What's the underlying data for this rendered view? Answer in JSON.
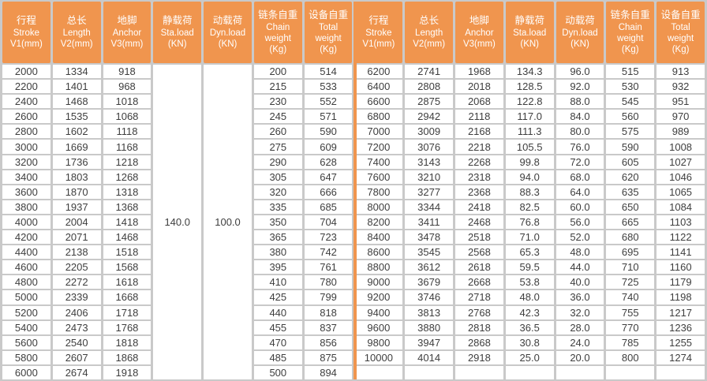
{
  "colors": {
    "header_orange": "#f0954e",
    "grid_gray": "#c9c9c9",
    "cell_white": "#ffffff",
    "text_dark": "#3e3e3e",
    "header_text": "#ffffff"
  },
  "table": {
    "columns": [
      {
        "lines": [
          "行程",
          "Stroke",
          "V1(mm)"
        ]
      },
      {
        "lines": [
          "总长",
          "Length",
          "V2(mm)"
        ]
      },
      {
        "lines": [
          "地脚",
          "Anchor",
          "V3(mm)"
        ]
      },
      {
        "lines": [
          "静载荷",
          "Sta.load",
          "(KN)"
        ]
      },
      {
        "lines": [
          "动载荷",
          "Dyn.load",
          "(KN)"
        ]
      },
      {
        "lines": [
          "链条自重",
          "Chain",
          "weight",
          "(Kg)"
        ]
      },
      {
        "lines": [
          "设备自重",
          "Total",
          "weight",
          "(Kg)"
        ]
      }
    ],
    "left_merged": {
      "sta_load": "140.0",
      "dyn_load": "100.0"
    },
    "left_rows": [
      [
        "2000",
        "1334",
        "918",
        "200",
        "514"
      ],
      [
        "2200",
        "1401",
        "968",
        "215",
        "533"
      ],
      [
        "2400",
        "1468",
        "1018",
        "230",
        "552"
      ],
      [
        "2600",
        "1535",
        "1068",
        "245",
        "571"
      ],
      [
        "2800",
        "1602",
        "1118",
        "260",
        "590"
      ],
      [
        "3000",
        "1669",
        "1168",
        "275",
        "609"
      ],
      [
        "3200",
        "1736",
        "1218",
        "290",
        "628"
      ],
      [
        "3400",
        "1803",
        "1268",
        "305",
        "647"
      ],
      [
        "3600",
        "1870",
        "1318",
        "320",
        "666"
      ],
      [
        "3800",
        "1937",
        "1368",
        "335",
        "685"
      ],
      [
        "4000",
        "2004",
        "1418",
        "350",
        "704"
      ],
      [
        "4200",
        "2071",
        "1468",
        "365",
        "723"
      ],
      [
        "4400",
        "2138",
        "1518",
        "380",
        "742"
      ],
      [
        "4600",
        "2205",
        "1568",
        "395",
        "761"
      ],
      [
        "4800",
        "2272",
        "1618",
        "410",
        "780"
      ],
      [
        "5000",
        "2339",
        "1668",
        "425",
        "799"
      ],
      [
        "5200",
        "2406",
        "1718",
        "440",
        "818"
      ],
      [
        "5400",
        "2473",
        "1768",
        "455",
        "837"
      ],
      [
        "5600",
        "2540",
        "1818",
        "470",
        "856"
      ],
      [
        "5800",
        "2607",
        "1868",
        "485",
        "875"
      ],
      [
        "6000",
        "2674",
        "1918",
        "500",
        "894"
      ]
    ],
    "right_rows": [
      [
        "6200",
        "2741",
        "1968",
        "134.3",
        "96.0",
        "515",
        "913"
      ],
      [
        "6400",
        "2808",
        "2018",
        "128.5",
        "92.0",
        "530",
        "932"
      ],
      [
        "6600",
        "2875",
        "2068",
        "122.8",
        "88.0",
        "545",
        "951"
      ],
      [
        "6800",
        "2942",
        "2118",
        "117.0",
        "84.0",
        "560",
        "970"
      ],
      [
        "7000",
        "3009",
        "2168",
        "111.3",
        "80.0",
        "575",
        "989"
      ],
      [
        "7200",
        "3076",
        "2218",
        "105.5",
        "76.0",
        "590",
        "1008"
      ],
      [
        "7400",
        "3143",
        "2268",
        "99.8",
        "72.0",
        "605",
        "1027"
      ],
      [
        "7600",
        "3210",
        "2318",
        "94.0",
        "68.0",
        "620",
        "1046"
      ],
      [
        "7800",
        "3277",
        "2368",
        "88.3",
        "64.0",
        "635",
        "1065"
      ],
      [
        "8000",
        "3344",
        "2418",
        "82.5",
        "60.0",
        "650",
        "1084"
      ],
      [
        "8200",
        "3411",
        "2468",
        "76.8",
        "56.0",
        "665",
        "1103"
      ],
      [
        "8400",
        "3478",
        "2518",
        "71.0",
        "52.0",
        "680",
        "1122"
      ],
      [
        "8600",
        "3545",
        "2568",
        "65.3",
        "48.0",
        "695",
        "1141"
      ],
      [
        "8800",
        "3612",
        "2618",
        "59.5",
        "44.0",
        "710",
        "1160"
      ],
      [
        "9000",
        "3679",
        "2668",
        "53.8",
        "40.0",
        "725",
        "1179"
      ],
      [
        "9200",
        "3746",
        "2718",
        "48.0",
        "36.0",
        "740",
        "1198"
      ],
      [
        "9400",
        "3813",
        "2768",
        "42.3",
        "32.0",
        "755",
        "1217"
      ],
      [
        "9600",
        "3880",
        "2818",
        "36.5",
        "28.0",
        "770",
        "1236"
      ],
      [
        "9800",
        "3947",
        "2868",
        "30.8",
        "24.0",
        "785",
        "1255"
      ],
      [
        "10000",
        "4014",
        "2918",
        "25.0",
        "20.0",
        "800",
        "1274"
      ],
      [
        "",
        "",
        "",
        "",
        "",
        "",
        ""
      ]
    ]
  }
}
